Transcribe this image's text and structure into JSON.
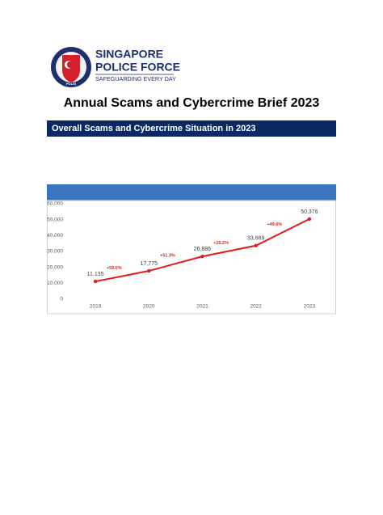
{
  "logo": {
    "badge": "POLIS",
    "line1": "SINGAPORE",
    "line2": "POLICE FORCE",
    "tagline": "SAFEGUARDING EVERY DAY"
  },
  "title": "Annual Scams and Cybercrime Brief 2023",
  "section_heading": "Overall Scams and Cybercrime Situation in 2023",
  "chart_data": {
    "type": "line",
    "categories": [
      "2019",
      "2020",
      "2021",
      "2022",
      "2023"
    ],
    "values": [
      11135,
      17775,
      26886,
      33669,
      50376
    ],
    "value_labels": [
      "11,135",
      "17,775",
      "26,886",
      "33,669",
      "50,376"
    ],
    "annotations": [
      "+59.6%",
      "+51.3%",
      "+25.2%",
      "+49.6%"
    ],
    "color": "#e31b1b",
    "ylim": [
      0,
      60000
    ],
    "yticks": [
      0,
      {
        "value": 10000,
        "label": "10,000"
      },
      {
        "value": 20000,
        "label": "20,000"
      },
      {
        "value": 30000,
        "label": "30,000"
      },
      {
        "value": 40000,
        "label": "40,000"
      },
      {
        "value": 50000,
        "label": "50,000"
      },
      {
        "value": 60000,
        "label": "60,000"
      }
    ],
    "grid": false
  }
}
